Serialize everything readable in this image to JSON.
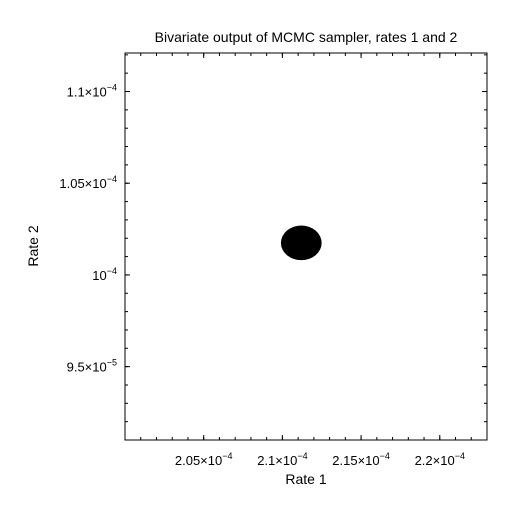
{
  "chart_data": {
    "type": "scatter",
    "title": "Bivariate output of MCMC sampler, rates 1 and 2",
    "xlabel": "Rate 1",
    "ylabel": "Rate 2",
    "xlim": [
      0.0002,
      0.000223
    ],
    "ylim": [
      9.1e-05,
      0.0001121
    ],
    "xticks": [
      {
        "value": 0.000205,
        "mant": "2.05",
        "exp": "−4"
      },
      {
        "value": 0.00021,
        "mant": "2.1",
        "exp": "−4"
      },
      {
        "value": 0.000215,
        "mant": "2.15",
        "exp": "−4"
      },
      {
        "value": 0.00022,
        "mant": "2.2",
        "exp": "−4"
      }
    ],
    "yticks": [
      {
        "value": 9.5e-05,
        "mant": "9.5",
        "exp": "−5"
      },
      {
        "value": 0.0001,
        "mant": "",
        "exp": "−4"
      },
      {
        "value": 0.000105,
        "mant": "1.05",
        "exp": "−4"
      },
      {
        "value": 0.00011,
        "mant": "1.1",
        "exp": "−4"
      }
    ],
    "series": [
      {
        "color": "#000000",
        "center": {
          "x": 0.0002112,
          "y": 0.00010175
        },
        "spread": {
          "x": 4e-07,
          "y": 3e-07
        },
        "points": [
          {
            "x": 0.0002112,
            "y": 0.00010175
          },
          {
            "x": 0.0002108,
            "y": 0.00010185
          },
          {
            "x": 0.0002116,
            "y": 0.00010168
          },
          {
            "x": 0.0002103,
            "y": 0.00010178
          },
          {
            "x": 0.0002121,
            "y": 0.0001017
          },
          {
            "x": 0.000211,
            "y": 0.00010198
          },
          {
            "x": 0.0002114,
            "y": 0.00010152
          },
          {
            "x": 0.0002118,
            "y": 0.00010189
          },
          {
            "x": 0.0002106,
            "y": 0.0001016
          },
          {
            "x": 0.0002113,
            "y": 0.00010176
          }
        ]
      }
    ],
    "grid": false,
    "legend": "none"
  }
}
